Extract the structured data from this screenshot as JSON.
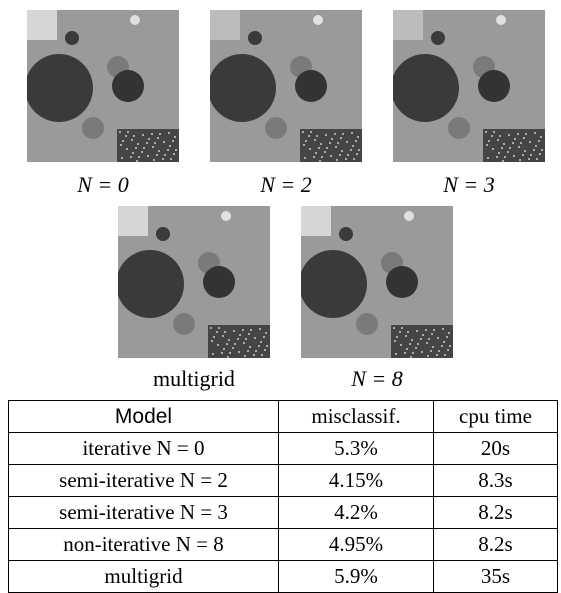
{
  "figures": [
    {
      "caption": "N = 0"
    },
    {
      "caption": "N = 2"
    },
    {
      "caption": "N = 3"
    },
    {
      "caption": "multigrid"
    },
    {
      "caption": "N = 8"
    }
  ],
  "table": {
    "header": [
      "Model",
      "misclassif.",
      "cpu time"
    ],
    "rows": [
      [
        "iterative N = 0",
        "5.3%",
        "20s"
      ],
      [
        "semi-iterative N = 2",
        "4.15%",
        "8.3s"
      ],
      [
        "semi-iterative N = 3",
        "4.2%",
        "8.2s"
      ],
      [
        "non-iterative N = 8",
        "4.95%",
        "8.2s"
      ],
      [
        "multigrid",
        "5.9%",
        "35s"
      ]
    ]
  }
}
